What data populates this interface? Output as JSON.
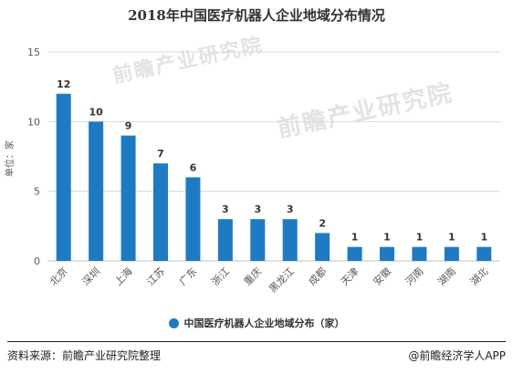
{
  "title": "2018年中国医疗机器人企业地域分布情况",
  "footer": {
    "source": "资料来源：前瞻产业研究院整理",
    "brand": "@前瞻经济学人APP"
  },
  "watermark": {
    "text1": "前瞻产业研究院",
    "text2": "前瞻产业研究院"
  },
  "colors": {
    "bar": "#1f7ac4",
    "grid": "#d9d9d9",
    "axis_text": "#595959"
  },
  "chart_data": {
    "type": "bar",
    "title": "2018年中国医疗机器人企业地域分布情况",
    "ylabel": "单位：家",
    "xlabel": "",
    "categories": [
      "北京",
      "深圳",
      "上海",
      "江苏",
      "广东",
      "浙江",
      "重庆",
      "黑龙江",
      "成都",
      "天津",
      "安徽",
      "河南",
      "湖南",
      "湖北"
    ],
    "series": [
      {
        "name": "中国医疗机器人企业地域分布（家）",
        "values": [
          12,
          10,
          9,
          7,
          6,
          3,
          3,
          3,
          2,
          1,
          1,
          1,
          1,
          1
        ]
      }
    ],
    "ylim": [
      0,
      15
    ],
    "yticks": [
      0,
      5,
      10,
      15
    ],
    "grid": true,
    "legend_position": "bottom"
  }
}
